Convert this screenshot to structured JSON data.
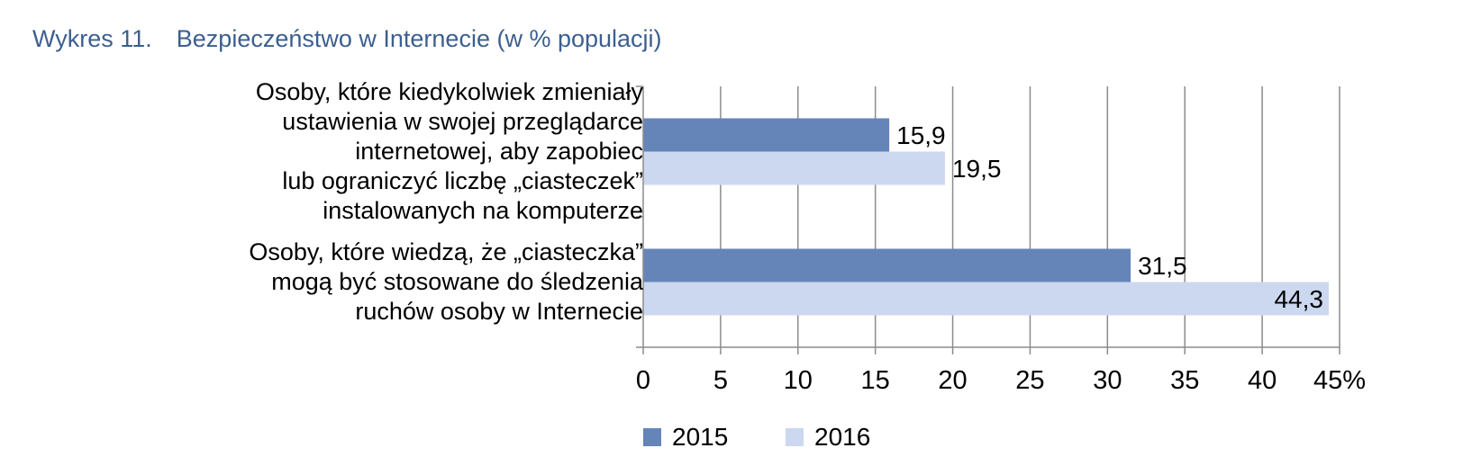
{
  "title": "Wykres 11.  Bezpieczeństwo w Internecie (w % populacji)",
  "chart_data": {
    "type": "bar",
    "orientation": "horizontal",
    "categories": [
      "Osoby, które kiedykolwiek zmieniały\nustawienia w swojej przeglądarce\ninternetowej, aby zapobiec\nlub ograniczyć liczbę „ciasteczek”\ninstalowanych na komputerze",
      "Osoby, które wiedzą, że „ciasteczka”\nmogą być stosowane do śledzenia\nruchów osoby w Internecie"
    ],
    "series": [
      {
        "name": "2015",
        "values": [
          15.9,
          31.5
        ],
        "labels": [
          "15,9",
          "31,5"
        ],
        "color": "#6585b9"
      },
      {
        "name": "2016",
        "values": [
          19.5,
          44.3
        ],
        "labels": [
          "19,5",
          "44,3"
        ],
        "color": "#ccd8ef"
      }
    ],
    "xlim": [
      0,
      45
    ],
    "xticks": [
      "0",
      "5",
      "10",
      "15",
      "20",
      "25",
      "30",
      "35",
      "40",
      "45%"
    ],
    "grid": true,
    "legend_position": "bottom"
  }
}
